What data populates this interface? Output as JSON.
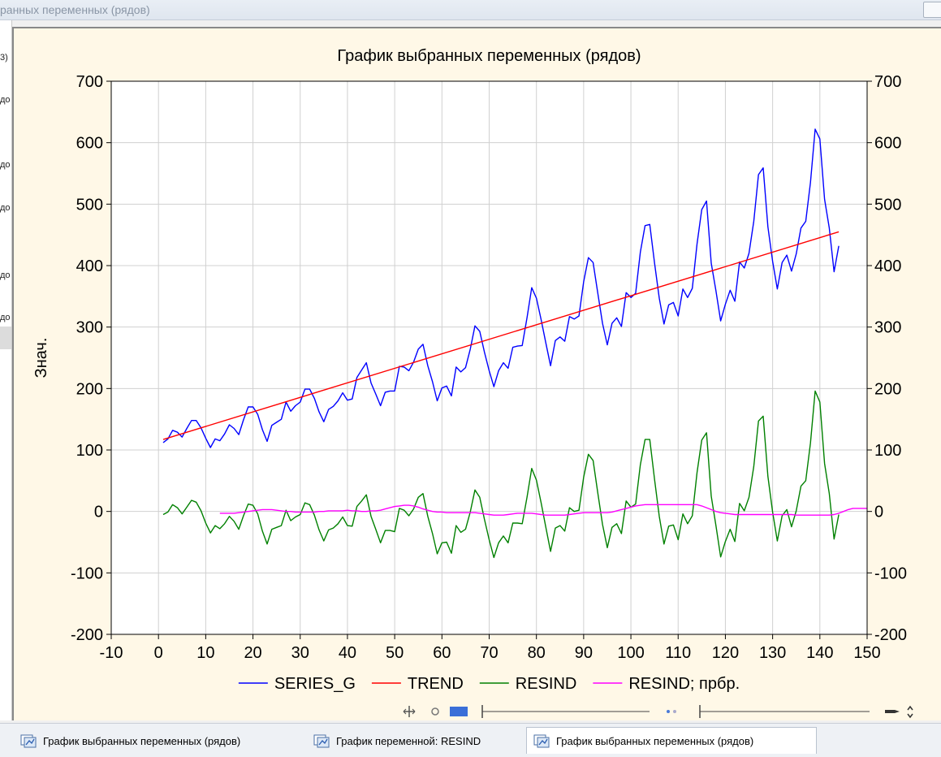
{
  "window": {
    "title": "ранных переменных (рядов)"
  },
  "left_panel": {
    "fragments": [
      "3)",
      "до",
      "до",
      "до",
      "до",
      "до"
    ]
  },
  "chart_data": {
    "type": "line",
    "title": "График выбранных переменных (рядов)",
    "ylabel": "Знач.",
    "xlim": [
      -10,
      150
    ],
    "ylim": [
      -200,
      700
    ],
    "x_ticks": [
      -10,
      0,
      10,
      20,
      30,
      40,
      50,
      60,
      70,
      80,
      90,
      100,
      110,
      120,
      130,
      140,
      150
    ],
    "y_ticks": [
      -200,
      -100,
      0,
      100,
      200,
      300,
      400,
      500,
      600,
      700
    ],
    "grid": true,
    "legend_position": "bottom",
    "series": [
      {
        "name": "SERIES_G",
        "color": "#0000ff",
        "x_start": 1,
        "values": [
          112,
          118,
          132,
          129,
          121,
          135,
          148,
          148,
          136,
          119,
          104,
          118,
          115,
          126,
          141,
          135,
          125,
          149,
          170,
          170,
          158,
          133,
          114,
          140,
          145,
          150,
          178,
          163,
          172,
          178,
          199,
          199,
          184,
          162,
          146,
          166,
          171,
          180,
          193,
          181,
          183,
          218,
          230,
          242,
          209,
          191,
          172,
          194,
          196,
          196,
          236,
          235,
          229,
          243,
          264,
          272,
          237,
          211,
          180,
          201,
          204,
          188,
          235,
          227,
          234,
          264,
          302,
          293,
          259,
          229,
          203,
          229,
          242,
          233,
          267,
          269,
          270,
          315,
          364,
          347,
          312,
          274,
          237,
          278,
          284,
          277,
          317,
          313,
          318,
          374,
          413,
          405,
          355,
          306,
          271,
          306,
          315,
          301,
          356,
          348,
          355,
          422,
          465,
          467,
          404,
          347,
          305,
          336,
          340,
          318,
          362,
          348,
          363,
          435,
          491,
          505,
          404,
          359,
          310,
          337,
          360,
          342,
          406,
          396,
          420,
          472,
          548,
          559,
          463,
          407,
          362,
          405,
          417,
          391,
          419,
          461,
          472,
          535,
          622,
          606,
          508,
          461,
          390,
          432
        ]
      },
      {
        "name": "TREND",
        "color": "#ff0000",
        "x_start": 1,
        "x_end": 144,
        "y_start": 117,
        "y_end": 455
      },
      {
        "name": "RESIND",
        "color": "#008000",
        "x_start": 1,
        "values": [
          -5,
          -1,
          11,
          6,
          -4,
          7,
          18,
          15,
          1,
          -19,
          -35,
          -23,
          -28,
          -20,
          -8,
          -16,
          -29,
          -7,
          12,
          10,
          -4,
          -32,
          -53,
          -29,
          -26,
          -23,
          2,
          -15,
          -9,
          -5,
          14,
          11,
          -6,
          -30,
          -48,
          -30,
          -27,
          -20,
          -9,
          -23,
          -24,
          8,
          17,
          27,
          -8,
          -29,
          -51,
          -31,
          -31,
          -33,
          5,
          2,
          -7,
          4,
          23,
          29,
          -8,
          -36,
          -69,
          -51,
          -50,
          -68,
          -23,
          -34,
          -29,
          -1,
          35,
          23,
          -13,
          -46,
          -75,
          -51,
          -40,
          -51,
          -19,
          -19,
          -20,
          23,
          70,
          51,
          14,
          -26,
          -65,
          -27,
          -23,
          -32,
          6,
          0,
          2,
          56,
          93,
          83,
          30,
          -21,
          -59,
          -26,
          -20,
          -36,
          17,
          7,
          12,
          76,
          117,
          117,
          52,
          -8,
          -53,
          -24,
          -22,
          -46,
          -4,
          -20,
          -7,
          63,
          116,
          128,
          25,
          -23,
          -74,
          -49,
          -29,
          -49,
          13,
          1,
          23,
          73,
          147,
          155,
          57,
          -1,
          -48,
          -7,
          3,
          -25,
          1,
          41,
          50,
          111,
          196,
          178,
          78,
          29,
          -45,
          -5
        ]
      },
      {
        "name": "RESIND; прбр.",
        "color": "#ff00ff",
        "x_start": 13,
        "values": [
          -3,
          -3,
          -3,
          -3,
          -2,
          -1,
          0,
          1,
          2,
          3,
          3,
          3,
          2,
          1,
          0,
          0,
          -1,
          -1,
          -1,
          -1,
          -1,
          0,
          0,
          1,
          1,
          1,
          1,
          2,
          1,
          1,
          0,
          0,
          1,
          1,
          2,
          4,
          6,
          8,
          9,
          10,
          10,
          9,
          7,
          4,
          2,
          0,
          -1,
          -1,
          -2,
          -2,
          -2,
          -2,
          -2,
          -2,
          -2,
          -3,
          -4,
          -5,
          -6,
          -6,
          -6,
          -5,
          -4,
          -3,
          -3,
          -3,
          -3,
          -4,
          -5,
          -6,
          -6,
          -6,
          -6,
          -6,
          -5,
          -4,
          -3,
          -2,
          -2,
          -2,
          -2,
          -2,
          -2,
          -1,
          1,
          3,
          5,
          7,
          9,
          10,
          11,
          11,
          11,
          11,
          11,
          11,
          11,
          11,
          11,
          11,
          11,
          11,
          9,
          6,
          3,
          0,
          -2,
          -3,
          -4,
          -5,
          -5,
          -5,
          -5,
          -5,
          -5,
          -5,
          -5,
          -5,
          -5,
          -5,
          -5,
          -5,
          -6,
          -6,
          -6,
          -6,
          -6,
          -6,
          -6,
          -6,
          -5,
          -3,
          0,
          3,
          5,
          5,
          5,
          5
        ]
      }
    ]
  },
  "taskbar": {
    "tabs": [
      {
        "label": "График выбранных переменных (рядов)",
        "active": false
      },
      {
        "label": "График переменной: RESIND",
        "active": false
      },
      {
        "label": "График выбранных переменных (рядов)",
        "active": true
      }
    ]
  }
}
